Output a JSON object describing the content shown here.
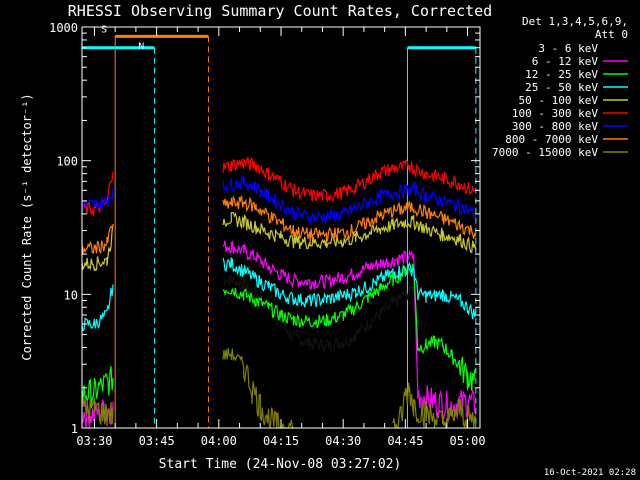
{
  "chart_data": {
    "type": "line",
    "title": "RHESSI Observing Summary Count Rates, Corrected",
    "xlabel": "Start Time (24-Nov-08 03:27:02)",
    "ylabel": "Corrected Count Rate (s⁻¹ detector⁻¹)",
    "yscale": "log",
    "ylim": [
      1,
      1000
    ],
    "xlim_min": [
      27,
      123
    ],
    "x_ticks": [
      "03:30",
      "03:45",
      "04:00",
      "04:15",
      "04:30",
      "04:45",
      "05:00"
    ],
    "x_tick_min": [
      30,
      45,
      60,
      75,
      90,
      105,
      120
    ],
    "y_ticks": [
      "1",
      "10",
      "100",
      "1000"
    ],
    "y_tick_values": [
      1,
      10,
      100,
      1000
    ],
    "grid": false,
    "legend_header": [
      "Det 1,3,4,5,6,9,",
      "Att 0"
    ],
    "legend_position": "right",
    "timestamp": "16-Oct-2021 02:28",
    "markers": {
      "saa": {
        "label": "S",
        "color": "#ff8000",
        "start_min": 35,
        "end_min": 57.5
      },
      "night": [
        {
          "label": "N",
          "color": "#00ffff",
          "start_min": 27,
          "end_min": 44.5
        },
        {
          "label": "",
          "color": "#00ffff",
          "start_min": 105.5,
          "end_min": 122
        }
      ]
    },
    "series": [
      {
        "name": "3 - 6 keV",
        "color": "#000000",
        "points": [
          [
            61,
            13
          ],
          [
            63,
            13
          ],
          [
            66,
            12
          ],
          [
            69,
            10
          ],
          [
            72,
            8
          ],
          [
            75,
            6
          ],
          [
            78,
            4.8
          ],
          [
            82,
            4.3
          ],
          [
            86,
            4.2
          ],
          [
            90,
            4.4
          ],
          [
            93,
            5
          ],
          [
            96,
            6
          ],
          [
            99,
            7.2
          ],
          [
            102,
            8.5
          ],
          [
            105,
            10
          ],
          [
            107,
            11
          ]
        ]
      },
      {
        "name": "6 - 12 keV",
        "color": "#ff00ff",
        "points": [
          [
            27,
            1.3
          ],
          [
            30,
            1.3
          ],
          [
            33,
            1.4
          ],
          [
            34.5,
            1.4
          ],
          [
            61,
            23
          ],
          [
            63,
            23
          ],
          [
            66,
            21
          ],
          [
            69,
            19
          ],
          [
            72,
            16
          ],
          [
            75,
            14
          ],
          [
            78,
            12.8
          ],
          [
            82,
            12.4
          ],
          [
            86,
            12.6
          ],
          [
            90,
            13.5
          ],
          [
            93,
            14.5
          ],
          [
            96,
            16
          ],
          [
            99,
            17
          ],
          [
            102,
            18
          ],
          [
            105,
            19
          ],
          [
            107,
            19
          ],
          [
            108,
            1.8
          ],
          [
            112,
            1.6
          ],
          [
            116,
            1.5
          ],
          [
            120,
            1.6
          ],
          [
            122,
            1.5
          ]
        ]
      },
      {
        "name": "12 - 25 keV",
        "color": "#00ff00",
        "points": [
          [
            27,
            1.8
          ],
          [
            30,
            1.9
          ],
          [
            33,
            2.2
          ],
          [
            34.5,
            2.4
          ],
          [
            61,
            11
          ],
          [
            63,
            11
          ],
          [
            66,
            10
          ],
          [
            69,
            9
          ],
          [
            72,
            8
          ],
          [
            75,
            7
          ],
          [
            78,
            6.5
          ],
          [
            82,
            6.3
          ],
          [
            86,
            6.4
          ],
          [
            90,
            7
          ],
          [
            93,
            8
          ],
          [
            96,
            9.5
          ],
          [
            99,
            11
          ],
          [
            102,
            13
          ],
          [
            105,
            15
          ],
          [
            107,
            16
          ],
          [
            108,
            4
          ],
          [
            110,
            4.2
          ],
          [
            112,
            4.4
          ],
          [
            114,
            4.2
          ],
          [
            116,
            3.5
          ],
          [
            118,
            3
          ],
          [
            120,
            2.5
          ],
          [
            122,
            2.2
          ]
        ]
      },
      {
        "name": "25 - 50 keV",
        "color": "#00ffff",
        "points": [
          [
            27,
            6
          ],
          [
            30,
            6
          ],
          [
            33,
            7
          ],
          [
            34.5,
            12
          ],
          [
            61,
            17
          ],
          [
            63,
            17
          ],
          [
            66,
            15
          ],
          [
            69,
            13
          ],
          [
            72,
            11.5
          ],
          [
            75,
            10
          ],
          [
            78,
            9.3
          ],
          [
            82,
            9
          ],
          [
            86,
            9.2
          ],
          [
            90,
            9.8
          ],
          [
            93,
            10.5
          ],
          [
            96,
            11.5
          ],
          [
            99,
            13
          ],
          [
            102,
            14.5
          ],
          [
            105,
            15.5
          ],
          [
            107,
            15.5
          ],
          [
            108,
            10
          ],
          [
            110,
            9.8
          ],
          [
            112,
            9.8
          ],
          [
            114,
            10
          ],
          [
            116,
            9.5
          ],
          [
            118,
            9
          ],
          [
            120,
            8
          ],
          [
            122,
            7
          ]
        ]
      },
      {
        "name": "50 - 100 keV",
        "color": "#c8c832",
        "points": [
          [
            27,
            17
          ],
          [
            30,
            17
          ],
          [
            33,
            18
          ],
          [
            34.5,
            30
          ],
          [
            61,
            36
          ],
          [
            63,
            37
          ],
          [
            66,
            35
          ],
          [
            69,
            32
          ],
          [
            72,
            29
          ],
          [
            75,
            27
          ],
          [
            78,
            25
          ],
          [
            82,
            24.5
          ],
          [
            86,
            24.5
          ],
          [
            90,
            25
          ],
          [
            93,
            26.5
          ],
          [
            96,
            28.5
          ],
          [
            99,
            31
          ],
          [
            102,
            33
          ],
          [
            105,
            35
          ],
          [
            107,
            35
          ],
          [
            110,
            31
          ],
          [
            114,
            28
          ],
          [
            118,
            26
          ],
          [
            122,
            22
          ]
        ]
      },
      {
        "name": "100 - 300 keV",
        "color": "#ff0000",
        "points": [
          [
            27,
            44
          ],
          [
            30,
            43
          ],
          [
            33,
            48
          ],
          [
            34.5,
            90
          ],
          [
            61,
            88
          ],
          [
            63,
            93
          ],
          [
            66,
            97
          ],
          [
            69,
            92
          ],
          [
            72,
            80
          ],
          [
            75,
            70
          ],
          [
            78,
            60
          ],
          [
            82,
            55
          ],
          [
            86,
            55
          ],
          [
            90,
            58
          ],
          [
            93,
            63
          ],
          [
            96,
            72
          ],
          [
            99,
            82
          ],
          [
            102,
            88
          ],
          [
            105,
            90
          ],
          [
            106,
            94
          ],
          [
            107,
            88
          ],
          [
            110,
            80
          ],
          [
            114,
            74
          ],
          [
            118,
            68
          ],
          [
            122,
            58
          ]
        ]
      },
      {
        "name": "300 - 800 keV",
        "color": "#0000ff",
        "points": [
          [
            27,
            47
          ],
          [
            30,
            47
          ],
          [
            33,
            50
          ],
          [
            34.5,
            60
          ],
          [
            61,
            64
          ],
          [
            63,
            67
          ],
          [
            66,
            69
          ],
          [
            69,
            64
          ],
          [
            72,
            54
          ],
          [
            75,
            47
          ],
          [
            78,
            41
          ],
          [
            82,
            38
          ],
          [
            86,
            38
          ],
          [
            90,
            40
          ],
          [
            93,
            44
          ],
          [
            96,
            49
          ],
          [
            99,
            54
          ],
          [
            102,
            57
          ],
          [
            105,
            60
          ],
          [
            107,
            62
          ],
          [
            110,
            55
          ],
          [
            114,
            50
          ],
          [
            118,
            46
          ],
          [
            122,
            40
          ]
        ]
      },
      {
        "name": "800 - 7000 keV",
        "color": "#ff8000",
        "points": [
          [
            27,
            22
          ],
          [
            30,
            22
          ],
          [
            33,
            24
          ],
          [
            34.5,
            35
          ],
          [
            61,
            46
          ],
          [
            63,
            48
          ],
          [
            66,
            49
          ],
          [
            69,
            45
          ],
          [
            72,
            39
          ],
          [
            75,
            34
          ],
          [
            78,
            30
          ],
          [
            82,
            28
          ],
          [
            86,
            28
          ],
          [
            90,
            29
          ],
          [
            93,
            31
          ],
          [
            96,
            35
          ],
          [
            99,
            39
          ],
          [
            102,
            42
          ],
          [
            105,
            44
          ],
          [
            107,
            45
          ],
          [
            110,
            41
          ],
          [
            114,
            37
          ],
          [
            118,
            33
          ],
          [
            122,
            29
          ]
        ]
      },
      {
        "name": "7000 - 15000 keV",
        "color": "#808000",
        "points": [
          [
            27,
            1.4
          ],
          [
            30,
            1.4
          ],
          [
            33,
            1.3
          ],
          [
            34.5,
            1.3
          ],
          [
            61,
            3.5
          ],
          [
            63,
            3.6
          ],
          [
            66,
            3
          ],
          [
            68,
            2
          ],
          [
            70,
            1.5
          ],
          [
            72,
            1.2
          ],
          [
            74,
            1.05
          ],
          [
            76,
            1
          ],
          [
            78,
            1
          ],
          [
            102,
            1
          ],
          [
            104,
            1.2
          ],
          [
            105,
            1.8
          ],
          [
            106,
            2
          ],
          [
            107,
            1.5
          ],
          [
            110,
            1.3
          ],
          [
            112,
            1.2
          ],
          [
            114,
            1.1
          ],
          [
            116,
            1.2
          ],
          [
            118,
            1.4
          ],
          [
            120,
            1.2
          ],
          [
            122,
            1.1
          ]
        ]
      }
    ]
  }
}
